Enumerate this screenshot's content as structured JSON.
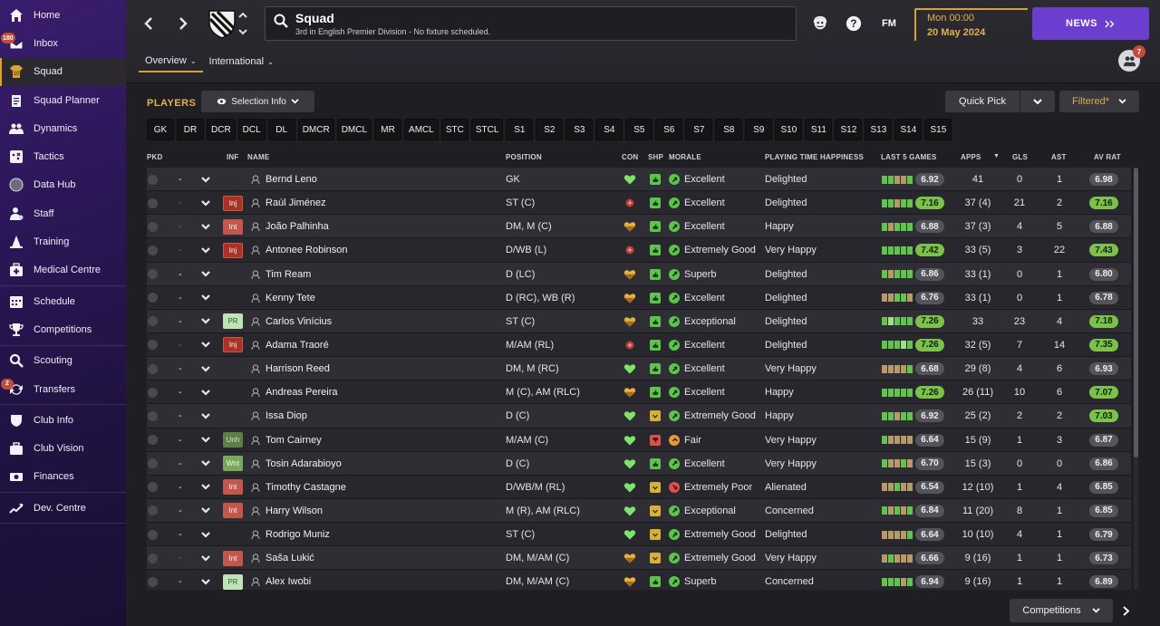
{
  "sidebar": {
    "groups": [
      [
        {
          "label": "Home",
          "icon": "home-icon"
        },
        {
          "label": "Inbox",
          "icon": "inbox-icon",
          "badge": "180"
        },
        {
          "label": "Squad",
          "icon": "shirt-icon",
          "active": true
        },
        {
          "label": "Squad Planner",
          "icon": "clipboard-icon"
        },
        {
          "label": "Dynamics",
          "icon": "people-icon"
        },
        {
          "label": "Tactics",
          "icon": "tactics-board-icon"
        },
        {
          "label": "Data Hub",
          "icon": "data-globe-icon"
        },
        {
          "label": "Staff",
          "icon": "staff-icon"
        },
        {
          "label": "Training",
          "icon": "cone-icon"
        },
        {
          "label": "Medical Centre",
          "icon": "medical-kit-icon"
        }
      ],
      [
        {
          "label": "Schedule",
          "icon": "calendar-icon"
        },
        {
          "label": "Competitions",
          "icon": "trophy-icon"
        }
      ],
      [
        {
          "label": "Scouting",
          "icon": "magnifier-icon"
        },
        {
          "label": "Transfers",
          "icon": "transfer-arrows-icon",
          "badge": "2"
        }
      ],
      [
        {
          "label": "Club Info",
          "icon": "shield-icon"
        },
        {
          "label": "Club Vision",
          "icon": "briefcase-icon"
        },
        {
          "label": "Finances",
          "icon": "money-icon"
        }
      ],
      [
        {
          "label": "Dev. Centre",
          "icon": "growth-chart-icon"
        }
      ]
    ]
  },
  "header": {
    "title": "Squad",
    "subtitle": "3rd in English Premier Division - No fixture scheduled.",
    "fm_label": "FM",
    "date_time": "Mon 00:00",
    "date_day": "20 May 2024",
    "news_label": "NEWS",
    "manager_badge": "7",
    "tabs": [
      {
        "label": "Overview",
        "active": true
      },
      {
        "label": "International",
        "active": false
      }
    ]
  },
  "panel": {
    "players_label": "PLAYERS",
    "selection_info_label": "Selection Info",
    "quick_pick_label": "Quick Pick",
    "filtered_label": "Filtered*",
    "competitions_label": "Competitions",
    "position_filters": [
      "GK",
      "DR",
      "DCR",
      "DCL",
      "DL",
      "DMCR",
      "DMCL",
      "MR",
      "AMCL",
      "STC",
      "STCL",
      "S1",
      "S2",
      "S3",
      "S4",
      "S5",
      "S6",
      "S7",
      "S8",
      "S9",
      "S10",
      "S11",
      "S12",
      "S13",
      "S14",
      "S15"
    ]
  },
  "table": {
    "columns": {
      "pkd": "PKD",
      "inf": "INF",
      "name": "NAME",
      "position": "POSITION",
      "con": "CON",
      "shp": "SHP",
      "morale": "MORALE",
      "pth": "PLAYING TIME HAPPINESS",
      "last5": "LAST 5 GAMES",
      "apps": "APPS",
      "gls": "GLS",
      "ast": "AST",
      "avrat": "AV RAT"
    },
    "colors": {
      "con_full": "#7ee36a",
      "con_half": "#e8b23c",
      "con_red": "#b43a32",
      "shp_good": "#5cc44d",
      "shp_ok": "#d6b13a",
      "shp_bad": "#d9534a",
      "morale_good": "#5cc44d",
      "morale_fair": "#e39a3a",
      "morale_poor": "#d9534a",
      "form_green": "#62c44d",
      "form_light": "#a8d98f",
      "form_tan": "#b89a6a",
      "form_grey": "#777"
    },
    "rows": [
      {
        "dash": "-",
        "dash_red": false,
        "inf": "",
        "name": "Bernd Leno",
        "position": "GK",
        "con": "full",
        "shp": "good",
        "morale": "Excellent",
        "morale_tone": "good",
        "pth": "Delighted",
        "form": [
          "g",
          "g",
          "t",
          "t",
          "g"
        ],
        "last5": "6.92",
        "last5_green": false,
        "apps": "41",
        "gls": "0",
        "ast": "1",
        "avrat": "6.98",
        "avrat_green": false
      },
      {
        "dash": "-",
        "dash_red": true,
        "inf": "Inj",
        "name": "Raúl Jiménez",
        "position": "ST (C)",
        "con": "red",
        "shp": "good",
        "morale": "Excellent",
        "morale_tone": "good",
        "pth": "Delighted",
        "form": [
          "g",
          "g",
          "t",
          "g",
          "g"
        ],
        "last5": "7.16",
        "last5_green": true,
        "apps": "37 (4)",
        "gls": "21",
        "ast": "2",
        "avrat": "7.16",
        "avrat_green": true
      },
      {
        "dash": "-",
        "dash_red": true,
        "inf": "Int",
        "name": "João Palhinha",
        "position": "DM, M (C)",
        "con": "half",
        "shp": "good",
        "morale": "Excellent",
        "morale_tone": "good",
        "pth": "Happy",
        "form": [
          "g",
          "t",
          "g",
          "g",
          "g"
        ],
        "last5": "6.88",
        "last5_green": false,
        "apps": "37 (3)",
        "gls": "4",
        "ast": "5",
        "avrat": "6.88",
        "avrat_green": false
      },
      {
        "dash": "-",
        "dash_red": true,
        "inf": "Inj",
        "name": "Antonee Robinson",
        "position": "D/WB (L)",
        "con": "red",
        "shp": "good",
        "morale": "Extremely Good",
        "morale_tone": "good",
        "pth": "Very Happy",
        "form": [
          "g",
          "g",
          "g",
          "g",
          "g"
        ],
        "last5": "7.42",
        "last5_green": true,
        "apps": "33 (5)",
        "gls": "3",
        "ast": "22",
        "avrat": "7.43",
        "avrat_green": true
      },
      {
        "dash": "-",
        "dash_red": false,
        "inf": "",
        "name": "Tim Ream",
        "position": "D (LC)",
        "con": "half",
        "shp": "good",
        "morale": "Superb",
        "morale_tone": "good",
        "pth": "Delighted",
        "form": [
          "g",
          "t",
          "g",
          "g",
          "g"
        ],
        "last5": "6.86",
        "last5_green": false,
        "apps": "33 (1)",
        "gls": "0",
        "ast": "1",
        "avrat": "6.80",
        "avrat_green": false
      },
      {
        "dash": "-",
        "dash_red": false,
        "inf": "",
        "name": "Kenny Tete",
        "position": "D (RC), WB (R)",
        "con": "half",
        "shp": "good",
        "morale": "Excellent",
        "morale_tone": "good",
        "pth": "Delighted",
        "form": [
          "t",
          "t",
          "g",
          "g",
          "t"
        ],
        "last5": "6.76",
        "last5_green": false,
        "apps": "33 (1)",
        "gls": "0",
        "ast": "1",
        "avrat": "6.78",
        "avrat_green": false
      },
      {
        "dash": "-",
        "dash_red": false,
        "inf": "PR",
        "name": "Carlos Vinícius",
        "position": "ST (C)",
        "con": "half",
        "shp": "good",
        "morale": "Exceptional",
        "morale_tone": "good",
        "pth": "Delighted",
        "form": [
          "g",
          "l",
          "g",
          "g",
          "g"
        ],
        "last5": "7.26",
        "last5_green": true,
        "apps": "33",
        "gls": "23",
        "ast": "4",
        "avrat": "7.18",
        "avrat_green": true
      },
      {
        "dash": "-",
        "dash_red": true,
        "inf": "Inj",
        "name": "Adama Traoré",
        "position": "M/AM (RL)",
        "con": "red",
        "shp": "good",
        "morale": "Excellent",
        "morale_tone": "good",
        "pth": "Delighted",
        "form": [
          "g",
          "g",
          "g",
          "l",
          "g"
        ],
        "last5": "7.26",
        "last5_green": true,
        "apps": "32 (5)",
        "gls": "7",
        "ast": "14",
        "avrat": "7.35",
        "avrat_green": true
      },
      {
        "dash": "-",
        "dash_red": false,
        "inf": "",
        "name": "Harrison Reed",
        "position": "DM, M (RC)",
        "con": "full",
        "shp": "good",
        "morale": "Excellent",
        "morale_tone": "good",
        "pth": "Very Happy",
        "form": [
          "t",
          "t",
          "t",
          "t",
          "g"
        ],
        "last5": "6.68",
        "last5_green": false,
        "apps": "29 (8)",
        "gls": "4",
        "ast": "6",
        "avrat": "6.93",
        "avrat_green": false
      },
      {
        "dash": "-",
        "dash_red": false,
        "inf": "",
        "name": "Andreas Pereira",
        "position": "M (C), AM (RLC)",
        "con": "half",
        "shp": "good",
        "morale": "Excellent",
        "morale_tone": "good",
        "pth": "Happy",
        "form": [
          "g",
          "g",
          "g",
          "g",
          "g"
        ],
        "last5": "7.26",
        "last5_green": true,
        "apps": "26 (11)",
        "gls": "10",
        "ast": "6",
        "avrat": "7.07",
        "avrat_green": true
      },
      {
        "dash": "-",
        "dash_red": false,
        "inf": "",
        "name": "Issa Diop",
        "position": "D (C)",
        "con": "full",
        "shp": "ok",
        "morale": "Extremely Good",
        "morale_tone": "good",
        "pth": "Happy",
        "form": [
          "g",
          "g",
          "t",
          "g",
          "g"
        ],
        "last5": "6.92",
        "last5_green": false,
        "apps": "25 (2)",
        "gls": "2",
        "ast": "2",
        "avrat": "7.03",
        "avrat_green": true
      },
      {
        "dash": "-",
        "dash_red": false,
        "inf": "Unh",
        "name": "Tom Cairney",
        "position": "M/AM (C)",
        "con": "full",
        "shp": "bad",
        "morale": "Fair",
        "morale_tone": "fair",
        "pth": "Very Happy",
        "form": [
          "g",
          "t",
          "t",
          "t",
          "t"
        ],
        "last5": "6.64",
        "last5_green": false,
        "apps": "15 (9)",
        "gls": "1",
        "ast": "3",
        "avrat": "6.87",
        "avrat_green": false
      },
      {
        "dash": "-",
        "dash_red": false,
        "inf": "Wnt",
        "name": "Tosin Adarabioyo",
        "position": "D (C)",
        "con": "full",
        "shp": "good",
        "morale": "Excellent",
        "morale_tone": "good",
        "pth": "Very Happy",
        "form": [
          "g",
          "t",
          "t",
          "g",
          "t"
        ],
        "last5": "6.70",
        "last5_green": false,
        "apps": "15 (3)",
        "gls": "0",
        "ast": "0",
        "avrat": "6.86",
        "avrat_green": false
      },
      {
        "dash": "-",
        "dash_red": false,
        "inf": "Int",
        "name": "Timothy Castagne",
        "position": "D/WB/M (RL)",
        "con": "full",
        "shp": "ok",
        "morale": "Extremely Poor",
        "morale_tone": "poor",
        "pth": "Alienated",
        "form": [
          "t",
          "t",
          "g",
          "t",
          "t"
        ],
        "last5": "6.54",
        "last5_green": false,
        "apps": "12 (10)",
        "gls": "1",
        "ast": "4",
        "avrat": "6.85",
        "avrat_green": false
      },
      {
        "dash": "-",
        "dash_red": false,
        "inf": "Int",
        "name": "Harry Wilson",
        "position": "M (R), AM (RLC)",
        "con": "full",
        "shp": "ok",
        "morale": "Exceptional",
        "morale_tone": "good",
        "pth": "Concerned",
        "form": [
          "g",
          "t",
          "g",
          "t",
          "g"
        ],
        "last5": "6.84",
        "last5_green": false,
        "apps": "11 (20)",
        "gls": "8",
        "ast": "1",
        "avrat": "6.85",
        "avrat_green": false
      },
      {
        "dash": "-",
        "dash_red": false,
        "inf": "",
        "name": "Rodrigo Muniz",
        "position": "ST (C)",
        "con": "full",
        "shp": "ok",
        "morale": "Extremely Good",
        "morale_tone": "good",
        "pth": "Delighted",
        "form": [
          "t",
          "t",
          "t",
          "t",
          "g"
        ],
        "last5": "6.64",
        "last5_green": false,
        "apps": "10 (10)",
        "gls": "4",
        "ast": "1",
        "avrat": "6.79",
        "avrat_green": false
      },
      {
        "dash": "-",
        "dash_red": true,
        "inf": "Int",
        "name": "Saša Lukić",
        "position": "DM, M/AM (C)",
        "con": "half",
        "shp": "ok",
        "morale": "Extremely Good",
        "morale_tone": "good",
        "pth": "Very Happy",
        "form": [
          "t",
          "g",
          "t",
          "t",
          "t"
        ],
        "last5": "6.66",
        "last5_green": false,
        "apps": "9 (16)",
        "gls": "1",
        "ast": "1",
        "avrat": "6.73",
        "avrat_green": false
      },
      {
        "dash": "-",
        "dash_red": false,
        "inf": "PR",
        "name": "Alex Iwobi",
        "position": "DM, M/AM (C)",
        "con": "half",
        "shp": "good",
        "morale": "Superb",
        "morale_tone": "good",
        "pth": "Concerned",
        "form": [
          "g",
          "g",
          "g",
          "t",
          "g"
        ],
        "last5": "6.94",
        "last5_green": false,
        "apps": "9 (16)",
        "gls": "1",
        "ast": "1",
        "avrat": "6.89",
        "avrat_green": false
      }
    ]
  }
}
